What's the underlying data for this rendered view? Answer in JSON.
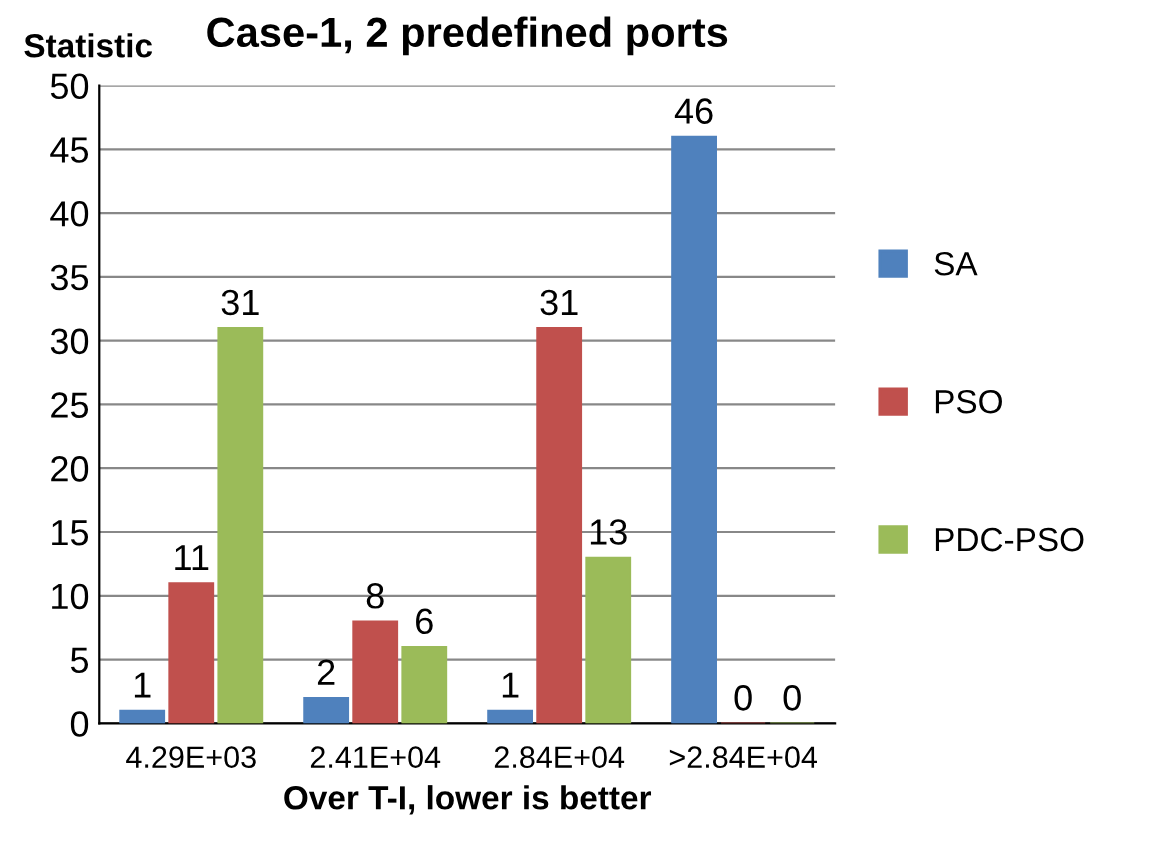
{
  "chart_data": {
    "type": "bar",
    "title": "Case-1, 2 predefined ports",
    "xlabel": "Over T-I, lower is better",
    "ylabel": "Statistic",
    "categories": [
      "4.29E+03",
      "2.41E+04",
      "2.84E+04",
      ">2.84E+04"
    ],
    "series": [
      {
        "name": "SA",
        "color": "#4f81bd",
        "values": [
          1,
          2,
          1,
          46
        ]
      },
      {
        "name": "PSO",
        "color": "#c0504d",
        "values": [
          11,
          8,
          31,
          0
        ]
      },
      {
        "name": "PDC-PSO",
        "color": "#9bbb59",
        "values": [
          31,
          6,
          13,
          0
        ]
      }
    ],
    "ylim": [
      0,
      50
    ],
    "yticks": [
      0,
      5,
      10,
      15,
      20,
      25,
      30,
      35,
      40,
      45,
      50
    ],
    "grid": "y",
    "legend": "right",
    "data_labels": true
  }
}
